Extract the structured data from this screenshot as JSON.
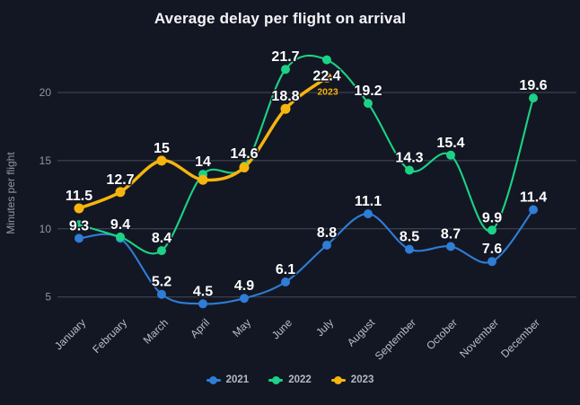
{
  "title": "Average delay per flight on arrival",
  "colors": {
    "background": "#131723",
    "grid": "#454b5a",
    "tick_text": "#8f95a3",
    "month_text": "#b9bdc7",
    "data_label_text": "#ffffff",
    "series_2021": "#2e7dd7",
    "series_2022": "#1cd286",
    "series_2023": "#f6b40f"
  },
  "chart_data": {
    "type": "line",
    "title": "Average delay per flight on arrival",
    "ylabel": "Minutes per flight",
    "categories": [
      "January",
      "February",
      "March",
      "April",
      "May",
      "June",
      "July",
      "August",
      "September",
      "October",
      "November",
      "December"
    ],
    "yticks": [
      5,
      10,
      15,
      20
    ],
    "ylim": [
      4,
      23.2
    ],
    "grid": "horizontal-only",
    "legend_position": "bottom",
    "series": [
      {
        "name": "2021",
        "color": "#2e7dd7",
        "values": [
          9.3,
          9.3,
          5.2,
          4.5,
          4.9,
          6.1,
          8.8,
          11.1,
          8.5,
          8.7,
          7.6,
          11.4
        ],
        "point_labels": [
          "9.3",
          "",
          "5.2",
          "4.5",
          "4.9",
          "6.1",
          "8.8",
          "11.1",
          "8.5",
          "8.7",
          "7.6",
          "11.4"
        ]
      },
      {
        "name": "2022",
        "color": "#1cd286",
        "values": [
          10.3,
          9.4,
          8.4,
          14,
          14.6,
          21.7,
          22.4,
          19.2,
          14.3,
          15.4,
          9.9,
          19.6
        ],
        "point_labels": [
          "",
          "9.4",
          "8.4",
          "14",
          "14.6",
          "21.7",
          "22.4",
          "19.2",
          "14.3",
          "15.4",
          "9.9",
          "19.6"
        ]
      },
      {
        "name": "2023",
        "color": "#f6b40f",
        "values": [
          11.5,
          12.7,
          15,
          13.6,
          14.5,
          18.8,
          21.1
        ],
        "point_labels": [
          "11.5",
          "12.7",
          "15",
          "",
          "",
          "18.8",
          ""
        ],
        "end_label": "2023"
      }
    ]
  }
}
